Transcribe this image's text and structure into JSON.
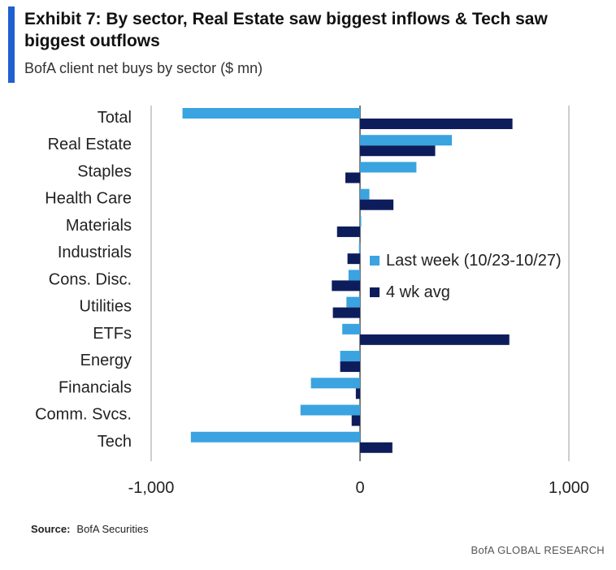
{
  "header": {
    "title": "Exhibit 7: By sector, Real Estate saw biggest inflows & Tech saw biggest outflows",
    "subtitle": "BofA client net buys by sector ($ mn)"
  },
  "footer": {
    "source_label": "Source:",
    "source_value": "BofA Securities",
    "brand": "BofA GLOBAL RESEARCH"
  },
  "colors": {
    "last_week": "#3aa3e0",
    "four_wk": "#0d1d5c",
    "grid": "#bdbdbd",
    "accent": "#1f5fd1"
  },
  "chart_data": {
    "type": "bar",
    "orientation": "horizontal",
    "categories": [
      "Total",
      "Real Estate",
      "Staples",
      "Health Care",
      "Materials",
      "Industrials",
      "Cons. Disc.",
      "Utilities",
      "ETFs",
      "Energy",
      "Financials",
      "Comm. Svcs.",
      "Tech"
    ],
    "series": [
      {
        "name": "Last week (10/23-10/27)",
        "values": [
          -850,
          440,
          270,
          45,
          5,
          -5,
          -55,
          -65,
          -85,
          -95,
          -235,
          -285,
          -810
        ]
      },
      {
        "name": "4 wk avg",
        "values": [
          730,
          360,
          -70,
          160,
          -110,
          -60,
          -135,
          -130,
          715,
          -95,
          -20,
          -40,
          155
        ]
      }
    ],
    "xlim": [
      -1000,
      1000
    ],
    "xticks": [
      "-1,000",
      "0",
      "1,000"
    ],
    "xtick_values": [
      -1000,
      0,
      1000
    ],
    "legend_position": "center-right",
    "title": "Exhibit 7: By sector, Real Estate saw biggest inflows & Tech saw biggest outflows",
    "xlabel": "",
    "ylabel": ""
  }
}
